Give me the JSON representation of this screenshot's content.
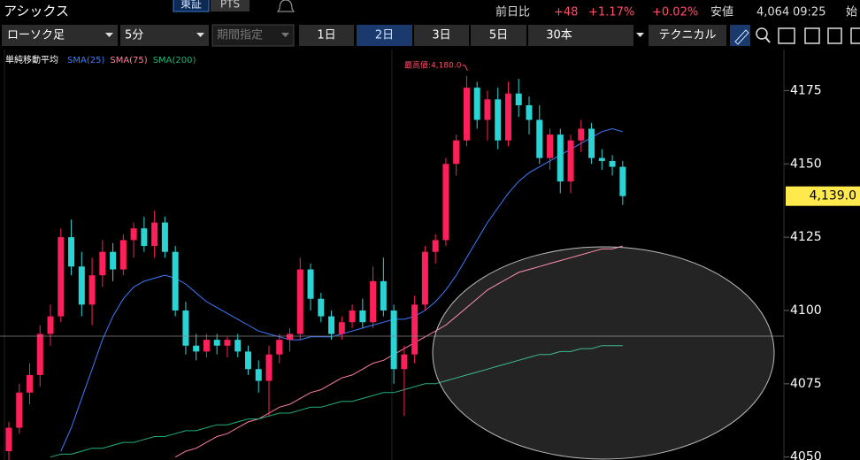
{
  "header": {
    "name": "アシックス",
    "markets": [
      "東証",
      "PTS"
    ],
    "change_label": "前日比",
    "change": "+48",
    "change_pct": "+1.17%",
    "change_pct2": "+0.02%",
    "low_label": "安値",
    "low": "4,064",
    "time": "09:25",
    "open_label": "始"
  },
  "toolbar": {
    "chart_kind": "ローソク足",
    "interval": "5分",
    "period": "期間指定",
    "ranges": [
      "1日",
      "2日",
      "3日",
      "5日",
      "30本"
    ],
    "selected_range": 1,
    "technical": "テクニカル"
  },
  "chart_data": {
    "type": "candlestick",
    "legend_title": "単純移動平均",
    "up_color": "#ff1f5a",
    "down_color": "#2ad4d4",
    "open": [
      4052,
      4060,
      4072,
      4078,
      4092,
      4098,
      4125,
      4115,
      4102,
      4112,
      4120,
      4114,
      4124,
      4128,
      4122,
      4130,
      4120,
      4100,
      4088,
      4086,
      4090,
      4088,
      4090,
      4086,
      4080,
      4076,
      4085,
      4090,
      4092,
      4114,
      4104,
      4098,
      4092,
      4096,
      4100,
      4096,
      4110,
      4100,
      4080,
      4085,
      4102,
      4120,
      4124,
      4150,
      4158,
      4176,
      4165,
      4172,
      4158,
      4174,
      4170,
      4165,
      4152,
      4160,
      4144,
      4158,
      4162,
      4152,
      4151,
      4149
    ],
    "high": [
      4062,
      4075,
      4082,
      4095,
      4102,
      4128,
      4131,
      4120,
      4118,
      4124,
      4123,
      4126,
      4130,
      4132,
      4134,
      4132,
      4122,
      4103,
      4092,
      4092,
      4092,
      4091,
      4092,
      4088,
      4083,
      4088,
      4092,
      4094,
      4118,
      4116,
      4106,
      4100,
      4098,
      4102,
      4104,
      4115,
      4118,
      4102,
      4088,
      4105,
      4122,
      4126,
      4152,
      4160,
      4180,
      4178,
      4175,
      4176,
      4178,
      4179,
      4173,
      4170,
      4162,
      4162,
      4160,
      4165,
      4164,
      4155,
      4153,
      4151
    ],
    "low": [
      4049,
      4058,
      4068,
      4074,
      4088,
      4096,
      4112,
      4098,
      4095,
      4108,
      4110,
      4112,
      4118,
      4120,
      4118,
      4118,
      4098,
      4085,
      4083,
      4084,
      4085,
      4084,
      4084,
      4078,
      4072,
      4064,
      4082,
      4086,
      4090,
      4100,
      4096,
      4090,
      4090,
      4094,
      4094,
      4094,
      4098,
      4075,
      4064,
      4082,
      4100,
      4116,
      4122,
      4146,
      4156,
      4162,
      4158,
      4155,
      4156,
      4166,
      4160,
      4150,
      4148,
      4140,
      4140,
      4154,
      4150,
      4148,
      4146,
      4136
    ],
    "close": [
      4060,
      4072,
      4078,
      4092,
      4098,
      4125,
      4115,
      4102,
      4112,
      4120,
      4114,
      4124,
      4128,
      4122,
      4130,
      4120,
      4100,
      4088,
      4086,
      4090,
      4088,
      4090,
      4086,
      4080,
      4076,
      4085,
      4090,
      4092,
      4114,
      4104,
      4098,
      4092,
      4096,
      4100,
      4096,
      4110,
      4100,
      4080,
      4085,
      4102,
      4120,
      4124,
      4150,
      4158,
      4176,
      4165,
      4172,
      4158,
      4174,
      4170,
      4165,
      4152,
      4160,
      4144,
      4158,
      4162,
      4152,
      4151,
      4149,
      4139
    ],
    "series": [
      {
        "name": "SMA(25)",
        "color": "#3d7bff",
        "values": [
          null,
          null,
          null,
          null,
          null,
          4052,
          4060,
          4070,
          4080,
          4090,
          4098,
          4104,
          4108,
          4110,
          4111,
          4112,
          4111,
          4109,
          4106,
          4103,
          4101,
          4099,
          4097,
          4095,
          4093,
          4092,
          4091,
          4090,
          4090,
          4091,
          4091,
          4091,
          4092,
          4093,
          4094,
          4095,
          4096,
          4097,
          4097,
          4098,
          4100,
          4103,
          4107,
          4112,
          4118,
          4124,
          4130,
          4135,
          4140,
          4144,
          4147,
          4149,
          4151,
          4153,
          4155,
          4157,
          4159,
          4161,
          4162,
          4161
        ]
      },
      {
        "name": "SMA(75)",
        "color": "#ff7fa0",
        "values": [
          null,
          null,
          null,
          null,
          null,
          null,
          null,
          null,
          null,
          null,
          null,
          null,
          null,
          null,
          null,
          null,
          4050,
          4052,
          4053,
          4055,
          4057,
          4058,
          4060,
          4062,
          4063,
          4065,
          4067,
          4068,
          4070,
          4072,
          4073,
          4075,
          4077,
          4078,
          4080,
          4082,
          4083,
          4085,
          4087,
          4089,
          4091,
          4093,
          4095,
          4098,
          4101,
          4104,
          4107,
          4109,
          4111,
          4113,
          4114,
          4115,
          4116,
          4117,
          4118,
          4119,
          4120,
          4121,
          4121,
          4122
        ]
      },
      {
        "name": "SMA(200)",
        "color": "#1fb07a",
        "values": [
          null,
          null,
          null,
          null,
          4050,
          4051,
          4051,
          4052,
          4053,
          4053,
          4054,
          4055,
          4055,
          4056,
          4057,
          4057,
          4058,
          4059,
          4059,
          4060,
          4061,
          4061,
          4062,
          4063,
          4063,
          4064,
          4065,
          4065,
          4066,
          4067,
          4067,
          4068,
          4069,
          4069,
          4070,
          4071,
          4072,
          4072,
          4073,
          4074,
          4075,
          4075,
          4076,
          4077,
          4078,
          4079,
          4080,
          4081,
          4082,
          4083,
          4084,
          4085,
          4085,
          4086,
          4086,
          4087,
          4087,
          4088,
          4088,
          4088
        ]
      }
    ],
    "ylim": [
      4049,
      4189
    ],
    "yticks": [
      4050,
      4075,
      4100,
      4125,
      4150,
      4175
    ],
    "max_label": "最高値:4,180.0",
    "max_index": 44,
    "last_label": "4,139.0"
  }
}
